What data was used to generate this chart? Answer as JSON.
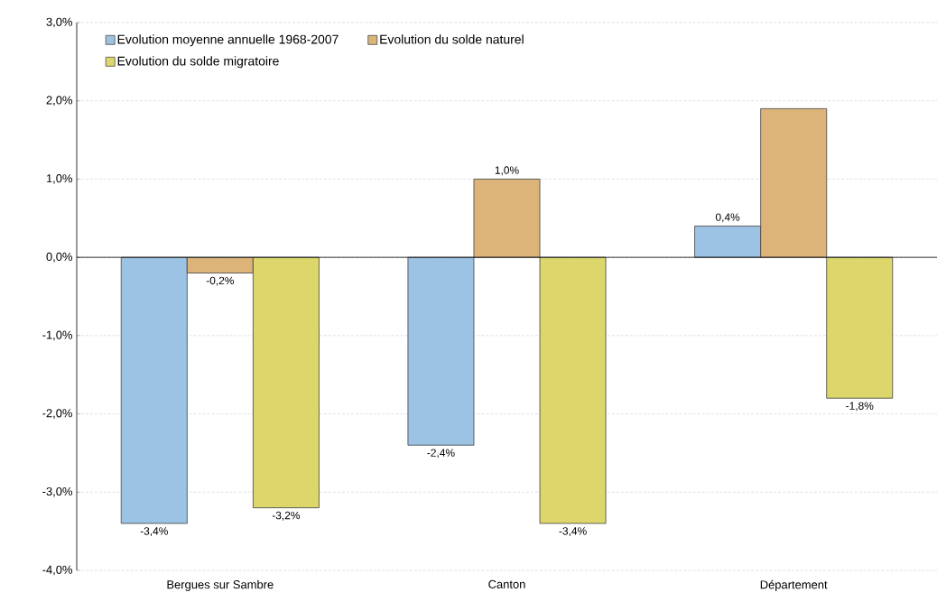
{
  "chart_data": {
    "type": "bar",
    "categories": [
      "Bergues sur Sambre",
      "Canton",
      "Département"
    ],
    "series": [
      {
        "name": "Evolution moyenne annuelle 1968-2007",
        "color": "#9cc3e3",
        "values": [
          -3.4,
          -2.4,
          0.4
        ],
        "value_labels": [
          "-3,4%",
          "-2,4%",
          "0,4%"
        ]
      },
      {
        "name": "Evolution du solde naturel",
        "color": "#dcb47a",
        "values": [
          -0.2,
          1.0,
          1.9
        ],
        "value_labels": [
          "-0,2%",
          "1,0%",
          null
        ]
      },
      {
        "name": "Evolution du solde migratoire",
        "color": "#ddd76b",
        "values": [
          -3.2,
          -3.4,
          -1.8
        ],
        "value_labels": [
          "-3,2%",
          "-3,4%",
          "-1,8%"
        ]
      }
    ],
    "ylim": [
      -4,
      3
    ],
    "yticks": [
      {
        "value": -4,
        "label": "-4,0%"
      },
      {
        "value": -3,
        "label": "-3,0%"
      },
      {
        "value": -2,
        "label": "-2,0%"
      },
      {
        "value": -1,
        "label": "-1,0%"
      },
      {
        "value": 0,
        "label": "0,0%"
      },
      {
        "value": 1,
        "label": "1,0%"
      },
      {
        "value": 2,
        "label": "2,0%"
      },
      {
        "value": 3,
        "label": "3,0%"
      }
    ],
    "grid": "y",
    "legend": "top left"
  }
}
